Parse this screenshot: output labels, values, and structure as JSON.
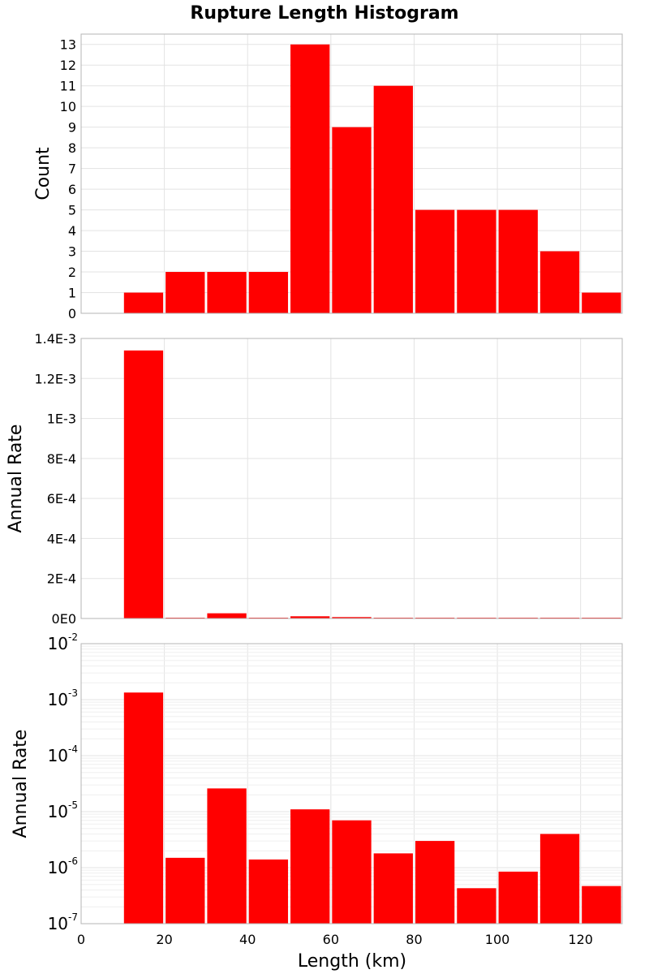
{
  "title": "Rupture Length Histogram",
  "x_axis": {
    "label": "Length (km)",
    "range": [
      0,
      130
    ],
    "ticks": [
      0,
      20,
      40,
      60,
      80,
      100,
      120
    ]
  },
  "chart_data": [
    {
      "type": "bar",
      "name": "count",
      "ylabel": "Count",
      "yscale": "linear",
      "ylim": [
        0,
        13.5
      ],
      "yticks": [
        {
          "v": 0,
          "label": "0"
        },
        {
          "v": 1,
          "label": "1"
        },
        {
          "v": 2,
          "label": "2"
        },
        {
          "v": 3,
          "label": "3"
        },
        {
          "v": 4,
          "label": "4"
        },
        {
          "v": 5,
          "label": "5"
        },
        {
          "v": 6,
          "label": "6"
        },
        {
          "v": 7,
          "label": "7"
        },
        {
          "v": 8,
          "label": "8"
        },
        {
          "v": 9,
          "label": "9"
        },
        {
          "v": 10,
          "label": "10"
        },
        {
          "v": 11,
          "label": "11"
        },
        {
          "v": 12,
          "label": "12"
        },
        {
          "v": 13,
          "label": "13"
        }
      ],
      "bin_width": 10,
      "bars": [
        {
          "x": 15,
          "value": 1
        },
        {
          "x": 25,
          "value": 2
        },
        {
          "x": 35,
          "value": 2
        },
        {
          "x": 45,
          "value": 2
        },
        {
          "x": 55,
          "value": 13
        },
        {
          "x": 65,
          "value": 9
        },
        {
          "x": 75,
          "value": 11
        },
        {
          "x": 85,
          "value": 5
        },
        {
          "x": 95,
          "value": 5
        },
        {
          "x": 105,
          "value": 5
        },
        {
          "x": 115,
          "value": 3
        },
        {
          "x": 125,
          "value": 1
        }
      ],
      "color": "#ff0000"
    },
    {
      "type": "bar",
      "name": "rate-linear",
      "ylabel": "Annual Rate",
      "yscale": "linear",
      "ylim": [
        0,
        0.0014
      ],
      "yticks": [
        {
          "v": 0,
          "label": "0E0"
        },
        {
          "v": 0.0002,
          "label": "2E-4"
        },
        {
          "v": 0.0004,
          "label": "4E-4"
        },
        {
          "v": 0.0006,
          "label": "6E-4"
        },
        {
          "v": 0.0008,
          "label": "8E-4"
        },
        {
          "v": 0.001,
          "label": "1E-3"
        },
        {
          "v": 0.0012,
          "label": "1.2E-3"
        },
        {
          "v": 0.0014,
          "label": "1.4E-3"
        }
      ],
      "bin_width": 10,
      "bars": [
        {
          "x": 15,
          "value": 0.00134
        },
        {
          "x": 25,
          "value": 1.5e-06
        },
        {
          "x": 35,
          "value": 2.6e-05
        },
        {
          "x": 45,
          "value": 1.4e-06
        },
        {
          "x": 55,
          "value": 1.1e-05
        },
        {
          "x": 65,
          "value": 7e-06
        },
        {
          "x": 75,
          "value": 1.8e-06
        },
        {
          "x": 85,
          "value": 3e-06
        },
        {
          "x": 95,
          "value": 4.3e-07
        },
        {
          "x": 105,
          "value": 8.5e-07
        },
        {
          "x": 115,
          "value": 4e-06
        },
        {
          "x": 125,
          "value": 4.7e-07
        }
      ],
      "color": "#ff0000"
    },
    {
      "type": "bar",
      "name": "rate-log",
      "ylabel": "Annual Rate",
      "yscale": "log",
      "ylim": [
        1e-07,
        0.01
      ],
      "yticks": [
        {
          "v": 1e-07,
          "base": "10",
          "exp": "-7"
        },
        {
          "v": 1e-06,
          "base": "10",
          "exp": "-6"
        },
        {
          "v": 1e-05,
          "base": "10",
          "exp": "-5"
        },
        {
          "v": 0.0001,
          "base": "10",
          "exp": "-4"
        },
        {
          "v": 0.001,
          "base": "10",
          "exp": "-3"
        },
        {
          "v": 0.01,
          "base": "10",
          "exp": "-2"
        }
      ],
      "bin_width": 10,
      "bars": [
        {
          "x": 15,
          "value": 0.00134
        },
        {
          "x": 25,
          "value": 1.5e-06
        },
        {
          "x": 35,
          "value": 2.6e-05
        },
        {
          "x": 45,
          "value": 1.4e-06
        },
        {
          "x": 55,
          "value": 1.1e-05
        },
        {
          "x": 65,
          "value": 7e-06
        },
        {
          "x": 75,
          "value": 1.8e-06
        },
        {
          "x": 85,
          "value": 3e-06
        },
        {
          "x": 95,
          "value": 4.3e-07
        },
        {
          "x": 105,
          "value": 8.5e-07
        },
        {
          "x": 115,
          "value": 4e-06
        },
        {
          "x": 125,
          "value": 4.7e-07
        }
      ],
      "color": "#ff0000"
    }
  ]
}
